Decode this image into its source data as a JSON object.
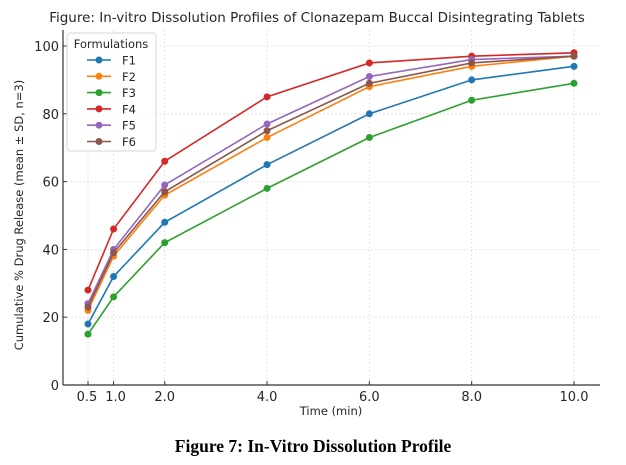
{
  "caption": "Figure 7: In-Vitro Dissolution Profile",
  "chart_data": {
    "type": "line",
    "title": "Figure: In-vitro Dissolution Profiles of Clonazepam Buccal Disintegrating Tablets",
    "xlabel": "Time (min)",
    "ylabel": "Cumulative % Drug Release (mean ± SD, n=3)",
    "x": [
      0.5,
      1.0,
      2.0,
      4.0,
      6.0,
      8.0,
      10.0
    ],
    "x_tick_labels": [
      "0.5",
      "1.0",
      "2.0",
      "4.0",
      "6.0",
      "8.0",
      "10.0"
    ],
    "y_ticks": [
      0,
      20,
      40,
      60,
      80,
      100
    ],
    "ylim": [
      0,
      100
    ],
    "xlim": [
      0.5,
      10.0
    ],
    "grid": true,
    "legend": {
      "title": "Formulations",
      "placement": "top-left"
    },
    "series": [
      {
        "name": "F1",
        "color": "#1f77b4",
        "values": [
          18,
          32,
          48,
          65,
          80,
          90,
          94
        ]
      },
      {
        "name": "F2",
        "color": "#ff7f0e",
        "values": [
          22,
          38,
          56,
          73,
          88,
          94,
          97
        ]
      },
      {
        "name": "F3",
        "color": "#2ca02c",
        "values": [
          15,
          26,
          42,
          58,
          73,
          84,
          89
        ]
      },
      {
        "name": "F4",
        "color": "#d62728",
        "values": [
          28,
          46,
          66,
          85,
          95,
          97,
          98
        ]
      },
      {
        "name": "F5",
        "color": "#9467bd",
        "values": [
          24,
          40,
          59,
          77,
          91,
          96,
          97
        ]
      },
      {
        "name": "F6",
        "color": "#8c564b",
        "values": [
          23,
          39,
          57,
          75,
          89,
          95,
          97
        ]
      }
    ]
  }
}
